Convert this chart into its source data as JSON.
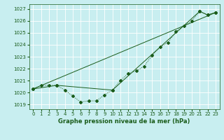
{
  "title": "Graphe pression niveau de la mer (hPa)",
  "bg_color": "#c8eef0",
  "grid_color": "#ffffff",
  "line_color": "#1a5c1a",
  "xlim": [
    -0.5,
    23.5
  ],
  "ylim": [
    1018.6,
    1027.4
  ],
  "yticks": [
    1019,
    1020,
    1021,
    1022,
    1023,
    1024,
    1025,
    1026,
    1027
  ],
  "xticks": [
    0,
    1,
    2,
    3,
    4,
    5,
    6,
    7,
    8,
    9,
    10,
    11,
    12,
    13,
    14,
    15,
    16,
    17,
    18,
    19,
    20,
    21,
    22,
    23
  ],
  "series1_x": [
    0,
    1,
    2,
    3,
    4,
    5,
    6,
    7,
    8,
    9,
    10,
    11,
    12,
    13,
    14,
    15,
    16,
    17,
    18,
    19,
    20,
    21,
    22,
    23
  ],
  "series1_y": [
    1020.3,
    1020.6,
    1020.6,
    1020.6,
    1020.2,
    1019.7,
    1019.2,
    1019.3,
    1019.3,
    1019.8,
    1020.2,
    1021.0,
    1021.6,
    1021.8,
    1022.2,
    1023.1,
    1023.8,
    1024.2,
    1025.1,
    1025.6,
    1026.0,
    1026.8,
    1026.5,
    1026.7
  ],
  "series2_x": [
    0,
    3,
    10,
    21,
    22,
    23
  ],
  "series2_y": [
    1020.3,
    1020.6,
    1020.2,
    1026.8,
    1026.5,
    1026.7
  ],
  "series3_x": [
    0,
    23
  ],
  "series3_y": [
    1020.3,
    1026.7
  ],
  "tick_fontsize": 5,
  "label_fontsize": 6,
  "linewidth": 0.7,
  "marker_size": 2.0
}
